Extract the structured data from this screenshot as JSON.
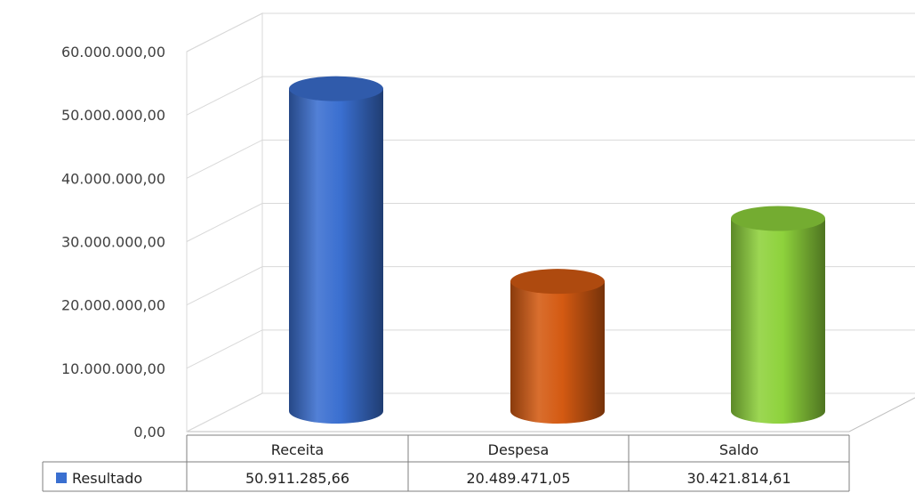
{
  "chart_data": {
    "type": "bar",
    "style": "3d-cylinder",
    "categories": [
      "Receita",
      "Despesa",
      "Saldo"
    ],
    "series": [
      {
        "name": "Resultado",
        "values": [
          50911285.66,
          20489471.05,
          30421814.61
        ],
        "value_labels": [
          "50.911.285,66",
          "20.489.471,05",
          "30.421.814,61"
        ],
        "colors": [
          "#3a6fd0",
          "#d45a12",
          "#8ed23c"
        ],
        "legend_color": "#3a6fd0"
      }
    ],
    "ylim": [
      0,
      60000000
    ],
    "yticks": [
      0,
      10000000,
      20000000,
      30000000,
      40000000,
      50000000,
      60000000
    ],
    "ytick_labels": [
      "0,00",
      "10.000.000,00",
      "20.000.000,00",
      "30.000.000,00",
      "40.000.000,00",
      "50.000.000,00",
      "60.000.000,00"
    ],
    "grid": true,
    "data_table": true
  }
}
